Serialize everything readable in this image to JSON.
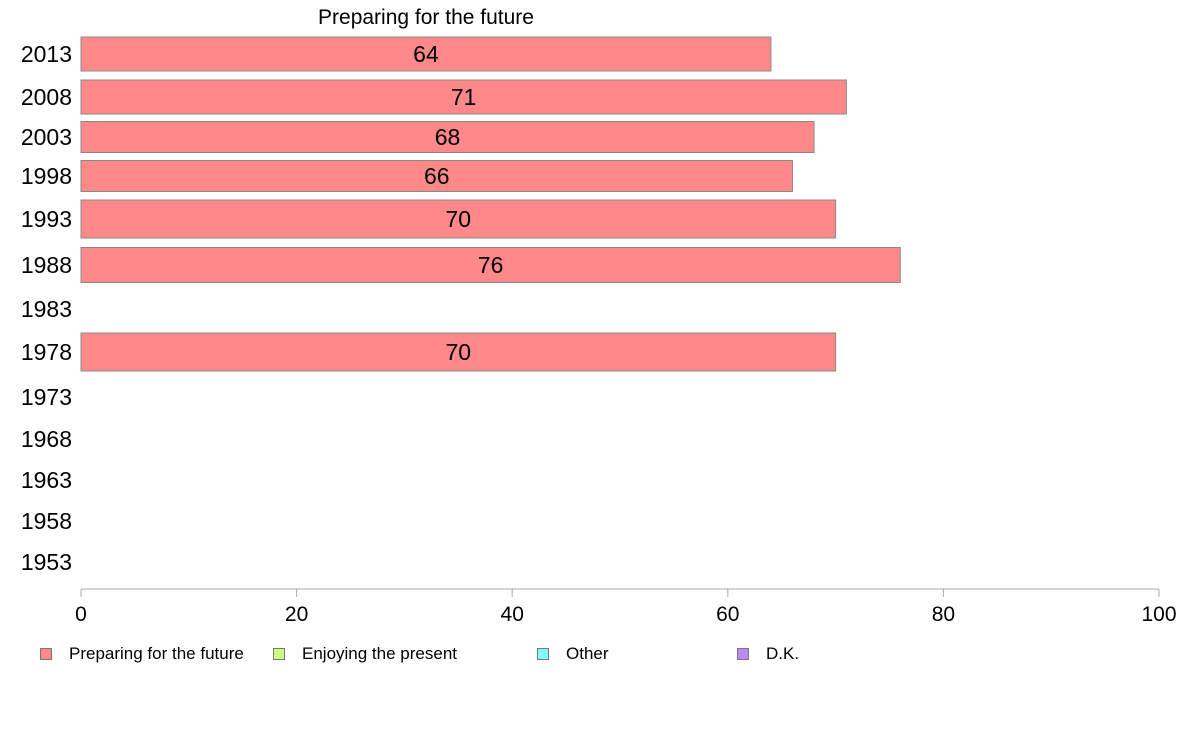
{
  "chart_data": {
    "type": "bar",
    "orientation": "horizontal",
    "title": "Preparing for the future",
    "categories": [
      "2013",
      "2008",
      "2003",
      "1998",
      "1993",
      "1988",
      "1983",
      "1978",
      "1973",
      "1968",
      "1963",
      "1958",
      "1953"
    ],
    "series": [
      {
        "name": "Preparing for the future",
        "color": "#ff8888",
        "values": [
          64,
          71,
          68,
          66,
          70,
          76,
          null,
          70,
          null,
          null,
          null,
          null,
          null
        ],
        "data_labels": [
          "64",
          "71",
          "68",
          "66",
          "70",
          "76",
          "",
          "70",
          "",
          "",
          "",
          "",
          ""
        ]
      }
    ],
    "xlim": [
      0,
      100
    ],
    "xticks": [
      "0",
      "20",
      "40",
      "60",
      "80",
      "100"
    ],
    "grid": false,
    "legend_position": "bottom",
    "legend": [
      {
        "label": "Preparing for the future",
        "color": "#ff8888"
      },
      {
        "label": "Enjoying the present",
        "color": "#c8ff80"
      },
      {
        "label": "Other",
        "color": "#80ffff"
      },
      {
        "label": "D.K.",
        "color": "#bb88ff"
      }
    ]
  }
}
